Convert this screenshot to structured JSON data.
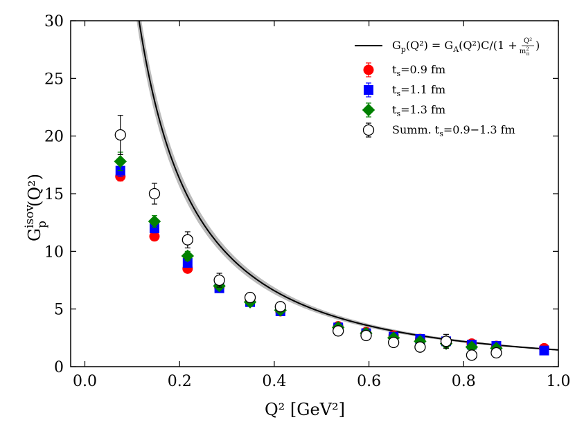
{
  "chart_data": {
    "type": "scatter",
    "xlabel": "Q² [GeV²]",
    "ylabel_main": "G",
    "ylabel_sub": "p",
    "ylabel_sup": "isov",
    "ylabel_arg": "(Q²)",
    "xlim": [
      -0.03,
      1.0
    ],
    "ylim": [
      0,
      30
    ],
    "x_ticks": [
      0.0,
      0.2,
      0.4,
      0.6,
      0.8,
      1.0
    ],
    "x_tick_labels": [
      "0.0",
      "0.2",
      "0.4",
      "0.6",
      "0.8",
      "1.0"
    ],
    "y_ticks": [
      0,
      5,
      10,
      15,
      20,
      25,
      30
    ],
    "y_tick_labels": [
      "0",
      "5",
      "10",
      "15",
      "20",
      "25",
      "30"
    ],
    "legend_location": "top-right",
    "fit": {
      "label": "Gp(Q²) = GA(Q²)C/(1 + Q²/m²π)",
      "label_left": "G",
      "label_left_sub": "p",
      "label_mid": "(Q²) = G",
      "label_mid_sub": "A",
      "label_right": "(Q²)C/(1 + ",
      "label_frac_num": "Q²",
      "label_frac_den": "m",
      "label_frac_den_sup": "2",
      "label_frac_den_sub": "π",
      "label_close": ")",
      "mpi2": 0.0217,
      "ga0": 1.22,
      "mA2": 1.23,
      "band_rel": 0.045,
      "color": "#000000",
      "band_color": "#bbbbbb"
    },
    "series": [
      {
        "name": "ts=0.9 fm",
        "legend_prefix": "t",
        "legend_sub": "s",
        "legend_suffix": "=0.9 fm",
        "marker": "circle",
        "color": "#ff0000",
        "x": [
          0.075,
          0.147,
          0.217,
          0.284,
          0.349,
          0.413,
          0.535,
          0.594,
          0.652,
          0.708,
          0.763,
          0.817,
          0.869,
          0.97
        ],
        "y": [
          16.5,
          11.3,
          8.5,
          6.9,
          5.7,
          4.8,
          3.5,
          3.0,
          2.7,
          2.4,
          2.2,
          2.0,
          1.8,
          1.6
        ],
        "err": [
          0.4,
          0.3,
          0.2,
          0.2,
          0.2,
          0.15,
          0.15,
          0.1,
          0.1,
          0.1,
          0.1,
          0.1,
          0.1,
          0.1
        ]
      },
      {
        "name": "ts=1.1 fm",
        "legend_prefix": "t",
        "legend_sub": "s",
        "legend_suffix": "=1.1 fm",
        "marker": "square",
        "color": "#0000ff",
        "x": [
          0.075,
          0.147,
          0.217,
          0.284,
          0.349,
          0.413,
          0.535,
          0.594,
          0.652,
          0.708,
          0.763,
          0.817,
          0.869,
          0.97
        ],
        "y": [
          17.0,
          12.0,
          9.0,
          6.8,
          5.6,
          4.8,
          3.4,
          2.9,
          2.6,
          2.4,
          2.2,
          1.9,
          1.8,
          1.4
        ],
        "err": [
          0.5,
          0.4,
          0.3,
          0.2,
          0.2,
          0.15,
          0.15,
          0.15,
          0.1,
          0.1,
          0.1,
          0.1,
          0.1,
          0.1
        ]
      },
      {
        "name": "ts=1.3 fm",
        "legend_prefix": "t",
        "legend_sub": "s",
        "legend_suffix": "=1.3 fm",
        "marker": "diamond",
        "color": "#008000",
        "x": [
          0.075,
          0.147,
          0.217,
          0.284,
          0.349,
          0.413,
          0.535,
          0.594,
          0.652,
          0.708,
          0.763,
          0.817,
          0.869
        ],
        "y": [
          17.8,
          12.6,
          9.6,
          7.0,
          5.6,
          4.9,
          3.4,
          2.9,
          2.5,
          2.2,
          2.0,
          1.7,
          1.6
        ],
        "err": [
          0.8,
          0.5,
          0.4,
          0.3,
          0.3,
          0.2,
          0.2,
          0.2,
          0.2,
          0.2,
          0.3,
          0.3,
          0.3
        ]
      },
      {
        "name": "Summ. ts=0.9−1.3 fm",
        "legend_prefix": "Summ. t",
        "legend_sub": "s",
        "legend_suffix": "=0.9−1.3 fm",
        "marker": "open-circle",
        "color": "#000000",
        "x": [
          0.075,
          0.147,
          0.217,
          0.284,
          0.349,
          0.413,
          0.535,
          0.594,
          0.652,
          0.708,
          0.763,
          0.817,
          0.869
        ],
        "y": [
          20.1,
          15.0,
          11.0,
          7.5,
          6.0,
          5.2,
          3.1,
          2.7,
          2.1,
          1.7,
          2.2,
          1.0,
          1.2
        ],
        "err": [
          1.7,
          0.9,
          0.7,
          0.6,
          0.4,
          0.4,
          0.4,
          0.3,
          0.3,
          0.3,
          0.6,
          0.4,
          0.3
        ]
      }
    ]
  }
}
